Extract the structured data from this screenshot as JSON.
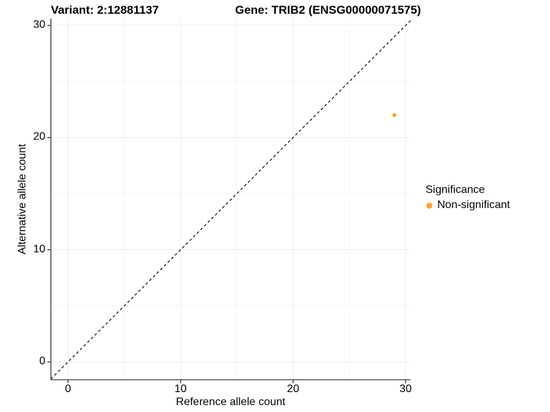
{
  "header": {
    "variant_title": "Variant: 2:12881137",
    "gene_title": "Gene: TRIB2 (ENSG00000071575)"
  },
  "chart_data": {
    "type": "scatter",
    "title_left": "Variant: 2:12881137",
    "title_right": "Gene: TRIB2 (ENSG00000071575)",
    "xlabel": "Reference allele count",
    "ylabel": "Alternative allele count",
    "xlim": [
      -1.5,
      30.5
    ],
    "ylim": [
      -1.6,
      30.6
    ],
    "x_major_ticks": [
      0,
      10,
      20,
      30
    ],
    "y_major_ticks": [
      0,
      10,
      20,
      30
    ],
    "x_minor_ticks": [
      5,
      15,
      25
    ],
    "y_minor_ticks": [
      5,
      15,
      25
    ],
    "grid": true,
    "abline": {
      "slope": 1,
      "intercept": 0,
      "style": "dashed",
      "color": "#000000"
    },
    "series": [
      {
        "name": "Non-significant",
        "color": "#FAA53C",
        "points": [
          {
            "x": 29,
            "y": 22
          }
        ]
      }
    ],
    "legend": {
      "title": "Significance",
      "position": "right",
      "entries": [
        {
          "label": "Non-significant",
          "color": "#FAA53C"
        }
      ]
    }
  },
  "colors": {
    "background": "#ffffff",
    "grid_major": "#ebebeb",
    "grid_minor": "#f5f5f5",
    "axis_line": "#333333",
    "tick_mark": "#333333",
    "text": "#000000",
    "point_orange": "#FAA53C"
  }
}
